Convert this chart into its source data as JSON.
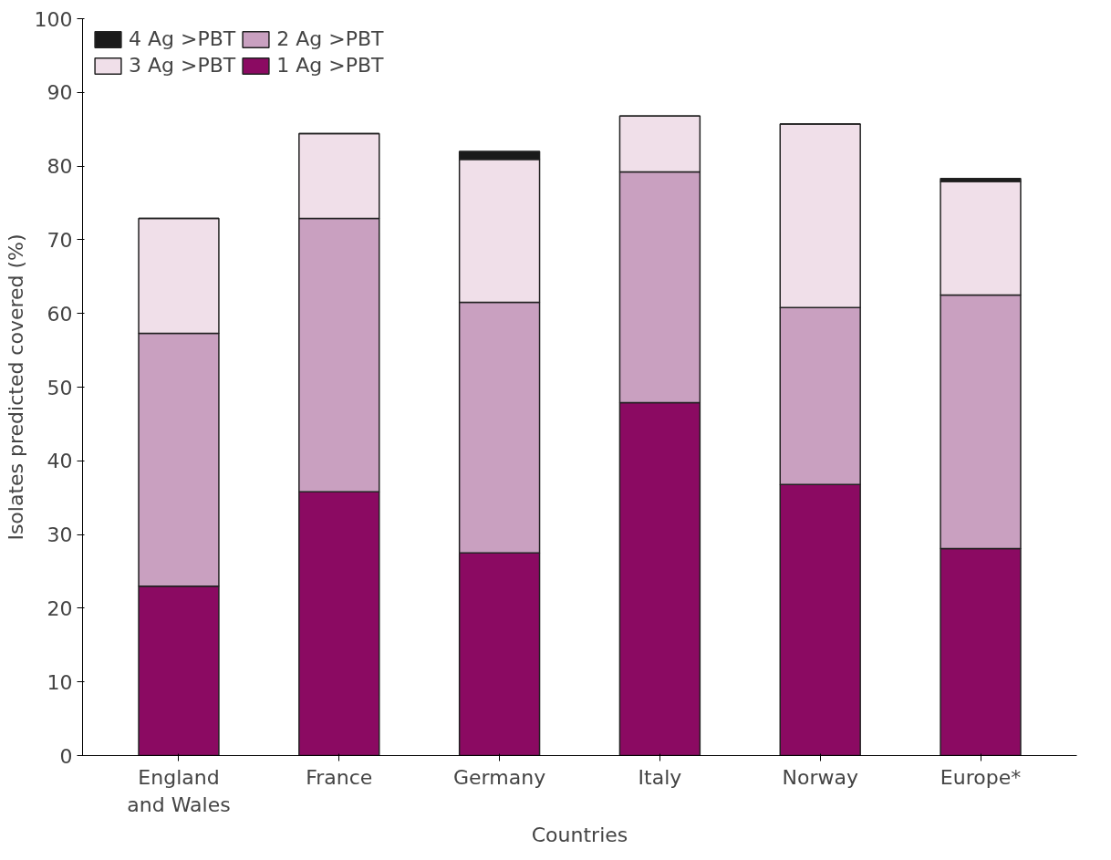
{
  "chart_data": {
    "type": "bar",
    "stacked": true,
    "xlabel": "Countries",
    "ylabel": "Isolates predicted covered (%)",
    "categories": [
      "England and Wales",
      "France",
      "Germany",
      "Italy",
      "Norway",
      "Europe*"
    ],
    "series": [
      {
        "name": "1 Ag >PBT",
        "color": "#8b0a62",
        "values": [
          23,
          35.8,
          27.5,
          47.9,
          36.8,
          28.1
        ]
      },
      {
        "name": "2 Ag >PBT",
        "color": "#c9a0c0",
        "values": [
          34.3,
          37.1,
          34,
          31.3,
          24,
          34.4
        ]
      },
      {
        "name": "3 Ag >PBT",
        "color": "#f0dfe9",
        "values": [
          15.6,
          11.5,
          19.4,
          7.6,
          24.9,
          15.4
        ]
      },
      {
        "name": "4 Ag >PBT",
        "color": "#1a1a1a",
        "values": [
          0,
          0,
          1.1,
          0,
          0,
          0.4
        ]
      }
    ],
    "ylim": [
      0,
      100
    ],
    "yticks": [
      0,
      10,
      20,
      30,
      40,
      50,
      60,
      70,
      80,
      90,
      100
    ],
    "grid": false,
    "legend": "top left"
  }
}
